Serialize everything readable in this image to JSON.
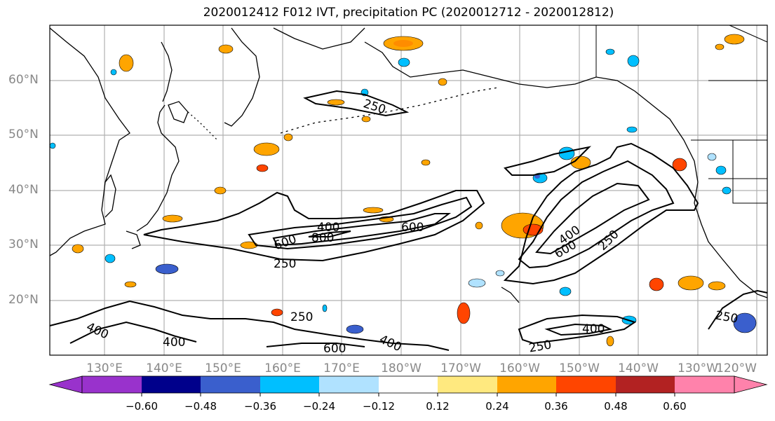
{
  "title": "2020012412 F012 IVT, precipitation PC (2020012712 - 2020012812)",
  "lat_labels": [
    "60°N",
    "50°N",
    "40°N",
    "30°N",
    "20°N"
  ],
  "lon_labels": [
    "130°E",
    "140°E",
    "150°E",
    "160°E",
    "170°E",
    "180°W",
    "170°W",
    "160°W",
    "150°W",
    "140°W",
    "130°W",
    "120°W"
  ],
  "contour_labels": [
    "250",
    "400",
    "600",
    "800",
    "600",
    "400",
    "600",
    "250",
    "250",
    "400",
    "400",
    "250",
    "600",
    "400",
    "250",
    "400",
    "250"
  ],
  "colorbar": {
    "ticks": [
      "−0.60",
      "−0.48",
      "−0.36",
      "−0.24",
      "−0.12",
      "0.12",
      "0.24",
      "0.36",
      "0.48",
      "0.60"
    ],
    "colors": [
      "#9932cc",
      "#00008b",
      "#3a5fcd",
      "#00bfff",
      "#b0e2ff",
      "#ffffff",
      "#ffe97f",
      "#ffa500",
      "#ff4500",
      "#b22222",
      "#ff82ab"
    ]
  }
}
